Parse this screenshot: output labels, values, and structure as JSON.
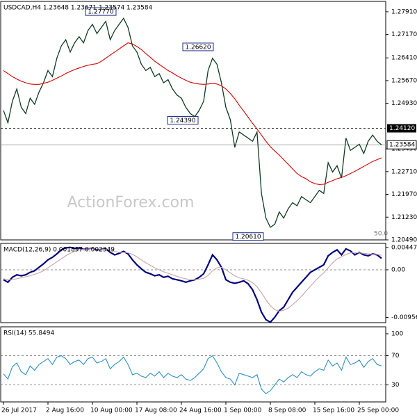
{
  "chart_data": [
    {
      "type": "line",
      "title": "USDCAD,H4  1.23648 1.23671 1.23574 1.23584",
      "watermark": "ActionForex.com",
      "note": "50.0",
      "ylim": [
        1.2049,
        1.28247
      ],
      "yticks": [
        {
          "value": 1.2791,
          "label": "1.27910"
        },
        {
          "value": 1.2717,
          "label": "1.27170"
        },
        {
          "value": 1.2641,
          "label": "1.26410"
        },
        {
          "value": 1.2567,
          "label": "1.25670"
        },
        {
          "value": 1.2493,
          "label": "1.24930"
        },
        {
          "value": 1.2345,
          "label": "1.23450"
        },
        {
          "value": 1.2271,
          "label": "1.22710"
        },
        {
          "value": 1.2197,
          "label": "1.21970"
        },
        {
          "value": 1.2123,
          "label": "1.21230"
        },
        {
          "value": 1.2049,
          "label": "1.20490"
        }
      ],
      "series": [
        {
          "color": "#0e3a1e",
          "values": [
            1.247,
            1.243,
            1.25,
            1.254,
            1.248,
            1.246,
            1.251,
            1.249,
            1.253,
            1.256,
            1.26,
            1.258,
            1.264,
            1.268,
            1.27,
            1.266,
            1.269,
            1.271,
            1.269,
            1.273,
            1.275,
            1.272,
            1.274,
            1.276,
            1.27,
            1.273,
            1.275,
            1.277,
            1.274,
            1.268,
            1.266,
            1.262,
            1.26,
            1.261,
            1.258,
            1.259,
            1.256,
            1.257,
            1.254,
            1.252,
            1.251,
            1.248,
            1.246,
            1.245,
            1.247,
            1.25,
            1.26,
            1.264,
            1.262,
            1.256,
            1.248,
            1.244,
            1.235,
            1.24,
            1.239,
            1.238,
            1.237,
            1.24,
            1.22,
            1.212,
            1.209,
            1.21,
            1.214,
            1.212,
            1.215,
            1.217,
            1.216,
            1.219,
            1.218,
            1.217,
            1.219,
            1.221,
            1.22,
            1.23,
            1.227,
            1.229,
            1.225,
            1.238,
            1.234,
            1.235,
            1.236,
            1.233,
            1.237,
            1.239,
            1.237,
            1.2358
          ]
        },
        {
          "color": "#d40000",
          "values": [
            1.26,
            1.259,
            1.258,
            1.2572,
            1.2565,
            1.256,
            1.2556,
            1.2555,
            1.2555,
            1.2558,
            1.2562,
            1.2568,
            1.2575,
            1.2582,
            1.259,
            1.2597,
            1.2603,
            1.2608,
            1.2613,
            1.2617,
            1.262,
            1.2622,
            1.263,
            1.264,
            1.265,
            1.266,
            1.267,
            1.268,
            1.269,
            1.2686,
            1.2678,
            1.2668,
            1.2655,
            1.2643,
            1.263,
            1.262,
            1.261,
            1.26,
            1.2592,
            1.2583,
            1.2575,
            1.2568,
            1.2562,
            1.2558,
            1.2556,
            1.2555,
            1.2556,
            1.2558,
            1.2556,
            1.255,
            1.254,
            1.2525,
            1.2508,
            1.2487,
            1.2468,
            1.2448,
            1.2428,
            1.241,
            1.239,
            1.237,
            1.2352,
            1.2338,
            1.2325,
            1.231,
            1.2295,
            1.228,
            1.2265,
            1.2255,
            1.2248,
            1.2238,
            1.2232,
            1.2229,
            1.223,
            1.2236,
            1.2242,
            1.2248,
            1.2252,
            1.2258,
            1.2265,
            1.2272,
            1.228,
            1.2288,
            1.2296,
            1.2304,
            1.231,
            1.2316
          ]
        }
      ],
      "annotations": [
        {
          "value": 1.2777,
          "label": "1.27770"
        },
        {
          "value": 1.2662,
          "label": "1.26620"
        },
        {
          "value": 1.2439,
          "label": "1.24390"
        },
        {
          "value": 1.2061,
          "label": "1.20610"
        }
      ],
      "hline": {
        "value": 1.2412,
        "label": "1.24120"
      },
      "last": {
        "value": 1.23584,
        "label": "1.23584"
      }
    },
    {
      "type": "line",
      "title": "MACD(12,26,9) 0.001897 0.002349",
      "ylim": [
        -0.0106,
        0.0053
      ],
      "yticks": [
        0.004476,
        {
          "value": 0,
          "label": "0.00"
        },
        -0.009567
      ],
      "series": [
        {
          "color": "#000080",
          "values": [
            -0.002,
            -0.0025,
            -0.0015,
            -0.001,
            -0.0012,
            -0.001,
            -0.0005,
            -0.0002,
            0.0005,
            0.0012,
            0.002,
            0.0025,
            0.0032,
            0.004,
            0.0044,
            0.0045,
            0.0043,
            0.0044,
            0.0041,
            0.0042,
            0.0043,
            0.004,
            0.0041,
            0.0042,
            0.0035,
            0.003,
            0.0033,
            0.0037,
            0.0032,
            0.002,
            0.001,
            0.0002,
            -0.0005,
            -0.0008,
            -0.0012,
            -0.001,
            -0.0015,
            -0.0013,
            -0.0018,
            -0.002,
            -0.0022,
            -0.0025,
            -0.0022,
            -0.002,
            -0.0015,
            -0.0008,
            0.001,
            0.003,
            0.002,
            0.0005,
            -0.002,
            -0.0025,
            -0.0027,
            -0.0025,
            -0.0022,
            -0.0028,
            -0.004,
            -0.006,
            -0.0085,
            -0.01,
            -0.0105,
            -0.0095,
            -0.0082,
            -0.0075,
            -0.006,
            -0.0045,
            -0.0035,
            -0.0025,
            -0.0015,
            -0.0005,
            0.0,
            0.0005,
            0.001,
            0.0028,
            0.0035,
            0.004,
            0.003,
            0.0042,
            0.0038,
            0.003,
            0.0035,
            0.003,
            0.0028,
            0.0032,
            0.003,
            0.0023
          ]
        },
        {
          "color": "#c9a3a3",
          "values": [
            -0.0018,
            -0.002,
            -0.002,
            -0.0018,
            -0.0016,
            -0.0014,
            -0.0012,
            -0.0009,
            -0.0006,
            -0.0002,
            0.0004,
            0.001,
            0.0016,
            0.0022,
            0.0028,
            0.0033,
            0.0037,
            0.004,
            0.0041,
            0.0042,
            0.0042,
            0.0042,
            0.0041,
            0.0041,
            0.004,
            0.0037,
            0.0035,
            0.0035,
            0.0034,
            0.0031,
            0.0026,
            0.002,
            0.0014,
            0.0009,
            0.0004,
            0.0,
            -0.0004,
            -0.0007,
            -0.001,
            -0.0013,
            -0.0016,
            -0.0018,
            -0.002,
            -0.002,
            -0.0019,
            -0.0017,
            -0.0011,
            -0.0002,
            0.0004,
            0.0005,
            0.0,
            -0.0006,
            -0.0012,
            -0.0016,
            -0.0018,
            -0.0021,
            -0.0026,
            -0.0034,
            -0.0046,
            -0.006,
            -0.0072,
            -0.008,
            -0.0083,
            -0.0081,
            -0.0077,
            -0.007,
            -0.0062,
            -0.0053,
            -0.0043,
            -0.0033,
            -0.0023,
            -0.0014,
            -0.0006,
            0.0004,
            0.0014,
            0.0022,
            0.0026,
            0.0031,
            0.0034,
            0.0034,
            0.0034,
            0.0033,
            0.0032,
            0.0031,
            0.0031,
            0.0029
          ]
        }
      ],
      "dashed": [
        0
      ]
    },
    {
      "type": "line",
      "title": "RSI(14) 55.8494",
      "ylim": [
        6.7,
        109.5
      ],
      "yticks": [
        100,
        70,
        30
      ],
      "series": [
        {
          "color": "#2a8fc4",
          "values": [
            45,
            38,
            55,
            60,
            48,
            44,
            56,
            50,
            58,
            62,
            66,
            58,
            68,
            70,
            66,
            58,
            62,
            64,
            58,
            66,
            68,
            60,
            62,
            66,
            52,
            58,
            62,
            68,
            58,
            44,
            46,
            42,
            40,
            46,
            42,
            48,
            40,
            46,
            42,
            40,
            44,
            38,
            36,
            40,
            46,
            52,
            66,
            70,
            60,
            48,
            40,
            38,
            30,
            46,
            44,
            42,
            40,
            44,
            24,
            18,
            22,
            30,
            38,
            34,
            40,
            44,
            40,
            48,
            44,
            42,
            48,
            52,
            50,
            64,
            56,
            60,
            50,
            68,
            58,
            60,
            64,
            54,
            62,
            66,
            58,
            56
          ]
        }
      ],
      "dashed": [
        70,
        30
      ],
      "xticks": [
        {
          "value": 0,
          "label": "26 Jul 2017"
        },
        {
          "value": 10,
          "label": "2 Aug 16:00"
        },
        {
          "value": 20,
          "label": "10 Aug 00:00"
        },
        {
          "value": 30,
          "label": "17 Aug 08:00"
        },
        {
          "value": 40,
          "label": "24 Aug 16:00"
        },
        {
          "value": 50,
          "label": "1 Sep 00:00"
        },
        {
          "value": 60,
          "label": "8 Sep 08:00"
        },
        {
          "value": 70,
          "label": "15 Sep 16:00"
        },
        {
          "value": 80,
          "label": "25 Sep 00:00"
        }
      ]
    }
  ]
}
